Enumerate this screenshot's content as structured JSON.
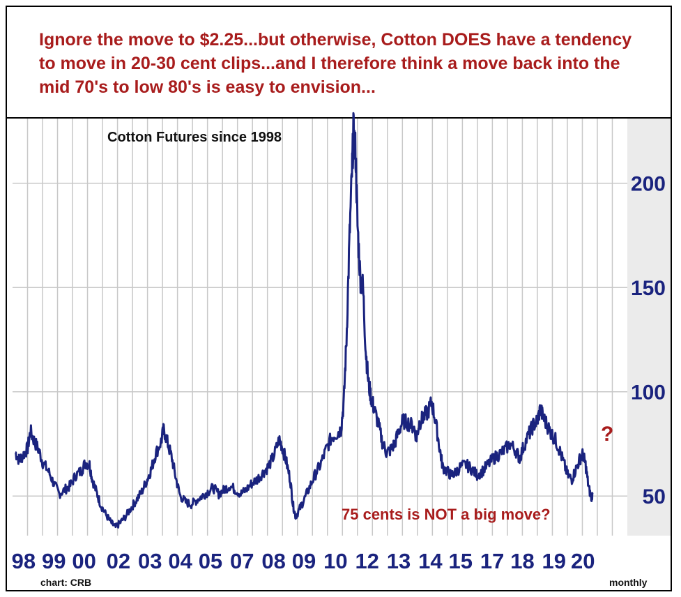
{
  "headline": "Ignore the move to $2.25...but otherwise, Cotton DOES have a tendency to move in 20-30 cent clips...and I therefore think a move back into the mid 70's to low 80's is easy to envision...",
  "source_label": "chart: CRB",
  "frequency_label": "monthly",
  "colors": {
    "annotation": "#a81c1c",
    "axis_text": "#1a237e",
    "line": "#1a237e",
    "grid": "#c8c8c8",
    "panel": "#e8e8e8"
  },
  "chart_data": {
    "type": "line",
    "title": "Cotton Futures since 1998",
    "xlabel": "",
    "ylabel": "",
    "x_tick_labels": [
      "98",
      "99",
      "00",
      "02",
      "03",
      "04",
      "05",
      "07",
      "08",
      "09",
      "10",
      "12",
      "13",
      "14",
      "15",
      "17",
      "18",
      "19",
      "20"
    ],
    "x_tick_positions": [
      1998.3,
      1999.4,
      2000.5,
      2001.75,
      2002.9,
      2004.0,
      2005.1,
      2006.25,
      2007.4,
      2008.5,
      2009.65,
      2010.8,
      2011.95,
      2013.1,
      2014.2,
      2015.35,
      2016.45,
      2017.6,
      2018.65
    ],
    "y_ticks": [
      50,
      100,
      150,
      200
    ],
    "ylim": [
      31,
      231
    ],
    "xlim": [
      1998.0,
      2019.0
    ],
    "grid": "vertical lines at regular intervals; horizontal lines at y ticks",
    "series": [
      {
        "values": [
          [
            1998.0,
            71
          ],
          [
            1998.15,
            67
          ],
          [
            1998.3,
            70
          ],
          [
            1998.45,
            73
          ],
          [
            1998.55,
            81
          ],
          [
            1998.7,
            76
          ],
          [
            1998.85,
            72
          ],
          [
            1999.0,
            66
          ],
          [
            1999.2,
            62
          ],
          [
            1999.4,
            56
          ],
          [
            1999.6,
            51
          ],
          [
            1999.8,
            53
          ],
          [
            2000.0,
            55
          ],
          [
            2000.2,
            60
          ],
          [
            2000.4,
            62
          ],
          [
            2000.55,
            66
          ],
          [
            2000.7,
            65
          ],
          [
            2000.8,
            58
          ],
          [
            2000.95,
            52
          ],
          [
            2001.1,
            46
          ],
          [
            2001.3,
            41
          ],
          [
            2001.5,
            37
          ],
          [
            2001.65,
            35
          ],
          [
            2001.8,
            37
          ],
          [
            2002.0,
            40
          ],
          [
            2002.2,
            44
          ],
          [
            2002.4,
            48
          ],
          [
            2002.6,
            52
          ],
          [
            2002.8,
            58
          ],
          [
            2002.95,
            63
          ],
          [
            2003.1,
            70
          ],
          [
            2003.3,
            76
          ],
          [
            2003.4,
            82
          ],
          [
            2003.55,
            75
          ],
          [
            2003.7,
            68
          ],
          [
            2003.85,
            58
          ],
          [
            2004.0,
            50
          ],
          [
            2004.2,
            47
          ],
          [
            2004.4,
            46
          ],
          [
            2004.6,
            48
          ],
          [
            2004.8,
            50
          ],
          [
            2005.0,
            52
          ],
          [
            2005.2,
            54
          ],
          [
            2005.4,
            51
          ],
          [
            2005.6,
            53
          ],
          [
            2005.8,
            55
          ],
          [
            2006.0,
            53
          ],
          [
            2006.2,
            51
          ],
          [
            2006.4,
            53
          ],
          [
            2006.6,
            56
          ],
          [
            2006.8,
            58
          ],
          [
            2007.0,
            61
          ],
          [
            2007.2,
            64
          ],
          [
            2007.4,
            69
          ],
          [
            2007.6,
            77
          ],
          [
            2007.7,
            74
          ],
          [
            2007.85,
            67
          ],
          [
            2008.0,
            58
          ],
          [
            2008.1,
            46
          ],
          [
            2008.2,
            40
          ],
          [
            2008.35,
            44
          ],
          [
            2008.5,
            48
          ],
          [
            2008.7,
            54
          ],
          [
            2008.9,
            60
          ],
          [
            2009.1,
            65
          ],
          [
            2009.3,
            72
          ],
          [
            2009.5,
            78
          ],
          [
            2009.7,
            80
          ],
          [
            2009.85,
            82
          ],
          [
            2009.95,
            95
          ],
          [
            2010.05,
            125
          ],
          [
            2010.15,
            170
          ],
          [
            2010.25,
            205
          ],
          [
            2010.3,
            224
          ],
          [
            2010.38,
            215
          ],
          [
            2010.45,
            180
          ],
          [
            2010.55,
            155
          ],
          [
            2010.65,
            150
          ],
          [
            2010.75,
            120
          ],
          [
            2010.85,
            104
          ],
          [
            2010.95,
            97
          ],
          [
            2011.05,
            92
          ],
          [
            2011.2,
            85
          ],
          [
            2011.35,
            76
          ],
          [
            2011.5,
            71
          ],
          [
            2011.65,
            72
          ],
          [
            2011.8,
            75
          ],
          [
            2011.95,
            81
          ],
          [
            2012.1,
            86
          ],
          [
            2012.3,
            85
          ],
          [
            2012.5,
            83
          ],
          [
            2012.6,
            78
          ],
          [
            2012.7,
            85
          ],
          [
            2012.85,
            88
          ],
          [
            2013.0,
            90
          ],
          [
            2013.15,
            95
          ],
          [
            2013.3,
            85
          ],
          [
            2013.45,
            72
          ],
          [
            2013.55,
            64
          ],
          [
            2013.7,
            62
          ],
          [
            2013.85,
            60
          ],
          [
            2014.0,
            61
          ],
          [
            2014.2,
            64
          ],
          [
            2014.4,
            65
          ],
          [
            2014.6,
            63
          ],
          [
            2014.8,
            60
          ],
          [
            2015.0,
            62
          ],
          [
            2015.2,
            65
          ],
          [
            2015.4,
            68
          ],
          [
            2015.6,
            70
          ],
          [
            2015.8,
            72
          ],
          [
            2016.0,
            75
          ],
          [
            2016.2,
            72
          ],
          [
            2016.35,
            68
          ],
          [
            2016.5,
            74
          ],
          [
            2016.7,
            80
          ],
          [
            2016.85,
            84
          ],
          [
            2017.0,
            86
          ],
          [
            2017.1,
            92
          ],
          [
            2017.2,
            88
          ],
          [
            2017.35,
            84
          ],
          [
            2017.5,
            80
          ],
          [
            2017.65,
            77
          ],
          [
            2017.8,
            72
          ],
          [
            2017.95,
            66
          ],
          [
            2018.1,
            60
          ],
          [
            2018.25,
            58
          ],
          [
            2018.4,
            63
          ],
          [
            2018.55,
            68
          ],
          [
            2018.65,
            70
          ],
          [
            2018.75,
            65
          ],
          [
            2018.85,
            55
          ],
          [
            2018.95,
            49
          ],
          [
            2019.0,
            51
          ]
        ]
      }
    ],
    "annotations": [
      {
        "text": "75 cents is NOT a big move?",
        "color": "#a81c1c"
      },
      {
        "text": "?",
        "color": "#a81c1c"
      }
    ]
  }
}
